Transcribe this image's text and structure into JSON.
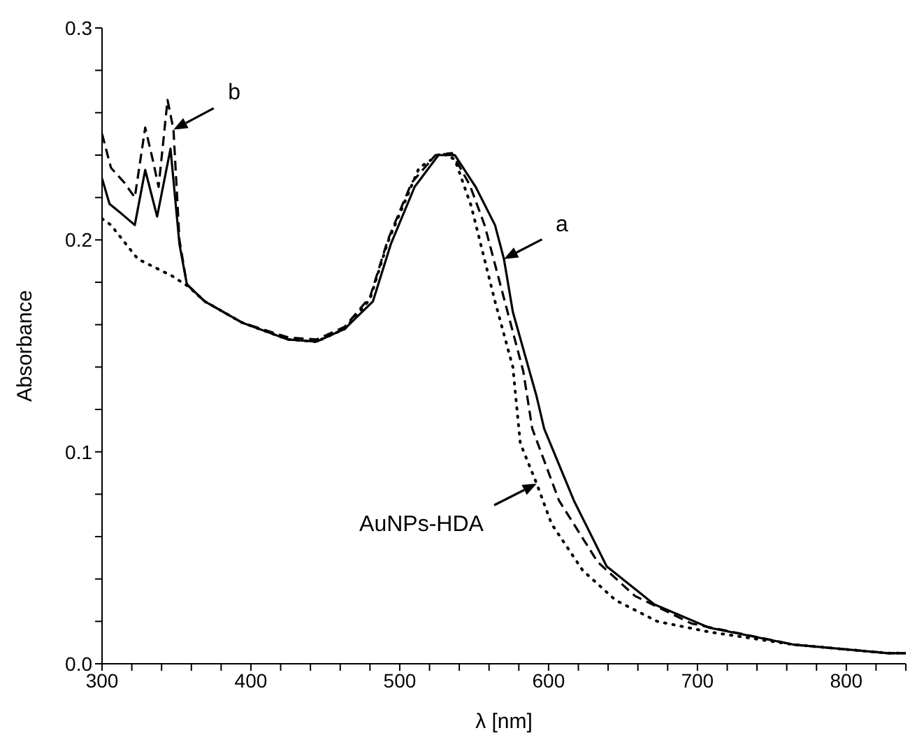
{
  "chart_data": {
    "type": "line",
    "xlabel": "λ   [nm]",
    "ylabel": "Absorbance",
    "xlim": [
      300,
      840
    ],
    "ylim": [
      0,
      0.3
    ],
    "xticks": [
      300,
      {
        "value": 320,
        "label": null
      },
      {
        "value": 340,
        "label": null
      },
      {
        "value": 360,
        "label": null
      },
      {
        "value": 380,
        "label": null
      },
      400,
      {
        "value": 420,
        "label": null
      },
      {
        "value": 440,
        "label": null
      },
      {
        "value": 460,
        "label": null
      },
      {
        "value": 480,
        "label": null
      },
      500,
      {
        "value": 520,
        "label": null
      },
      {
        "value": 540,
        "label": null
      },
      {
        "value": 560,
        "label": null
      },
      {
        "value": 580,
        "label": null
      },
      600,
      {
        "value": 620,
        "label": null
      },
      {
        "value": 640,
        "label": null
      },
      {
        "value": 660,
        "label": null
      },
      {
        "value": 680,
        "label": null
      },
      700,
      {
        "value": 720,
        "label": null
      },
      {
        "value": 740,
        "label": null
      },
      {
        "value": 760,
        "label": null
      },
      {
        "value": 780,
        "label": null
      },
      800,
      {
        "value": 820,
        "label": null
      },
      {
        "value": 840,
        "label": null
      }
    ],
    "yticks": [
      {
        "value": 0,
        "label": "0.0"
      },
      {
        "value": 0.02,
        "label": null
      },
      {
        "value": 0.04,
        "label": null
      },
      {
        "value": 0.06,
        "label": null
      },
      {
        "value": 0.08,
        "label": null
      },
      0.1,
      {
        "value": 0.12,
        "label": null
      },
      {
        "value": 0.14,
        "label": null
      },
      {
        "value": 0.16,
        "label": null
      },
      {
        "value": 0.18,
        "label": null
      },
      0.2,
      {
        "value": 0.22,
        "label": null
      },
      {
        "value": 0.24,
        "label": null
      },
      {
        "value": 0.26,
        "label": null
      },
      {
        "value": 0.28,
        "label": null
      },
      0.3
    ],
    "marker": "none",
    "grid": false,
    "legend": false,
    "series": [
      {
        "name": "a",
        "color": "#000000",
        "line_style": "solid",
        "x": [
          300,
          305,
          312,
          322,
          329,
          337,
          346,
          352,
          357,
          369,
          394,
          425,
          444,
          463,
          482,
          494,
          510,
          526,
          537,
          551,
          564,
          570,
          576,
          592,
          597,
          617,
          639,
          671,
          708,
          765,
          828,
          840
        ],
        "values": [
          0.229,
          0.217,
          0.213,
          0.207,
          0.233,
          0.211,
          0.243,
          0.198,
          0.179,
          0.171,
          0.161,
          0.153,
          0.152,
          0.158,
          0.171,
          0.198,
          0.225,
          0.24,
          0.24,
          0.225,
          0.207,
          0.191,
          0.166,
          0.126,
          0.111,
          0.077,
          0.046,
          0.028,
          0.017,
          0.009,
          0.005,
          0.005
        ]
      },
      {
        "name": "b",
        "color": "#000000",
        "line_style": "dashed",
        "x": [
          300,
          306,
          315,
          322,
          329,
          334,
          338,
          344,
          348,
          352,
          357,
          369,
          394,
          425,
          444,
          463,
          480,
          492,
          508,
          524,
          535,
          547,
          557,
          583,
          589,
          607,
          633,
          658,
          696,
          765,
          828,
          840
        ],
        "values": [
          0.25,
          0.234,
          0.227,
          0.22,
          0.253,
          0.238,
          0.225,
          0.266,
          0.252,
          0.2,
          0.179,
          0.171,
          0.161,
          0.154,
          0.153,
          0.159,
          0.173,
          0.2,
          0.227,
          0.24,
          0.241,
          0.226,
          0.207,
          0.138,
          0.111,
          0.077,
          0.048,
          0.032,
          0.019,
          0.009,
          0.005,
          0.005
        ]
      },
      {
        "name": "AuNPs-HDA",
        "color": "#000000",
        "line_style": "dotted",
        "x": [
          300,
          306,
          324,
          347,
          358,
          369,
          394,
          425,
          444,
          463,
          480,
          492,
          513,
          528,
          537,
          548,
          564,
          576,
          581,
          592,
          602,
          623,
          645,
          673,
          708,
          765,
          828,
          840
        ],
        "values": [
          0.21,
          0.207,
          0.191,
          0.183,
          0.178,
          0.171,
          0.161,
          0.153,
          0.152,
          0.158,
          0.172,
          0.199,
          0.234,
          0.241,
          0.238,
          0.216,
          0.171,
          0.14,
          0.104,
          0.085,
          0.066,
          0.044,
          0.03,
          0.02,
          0.015,
          0.009,
          0.005,
          0.005
        ]
      }
    ]
  }
}
